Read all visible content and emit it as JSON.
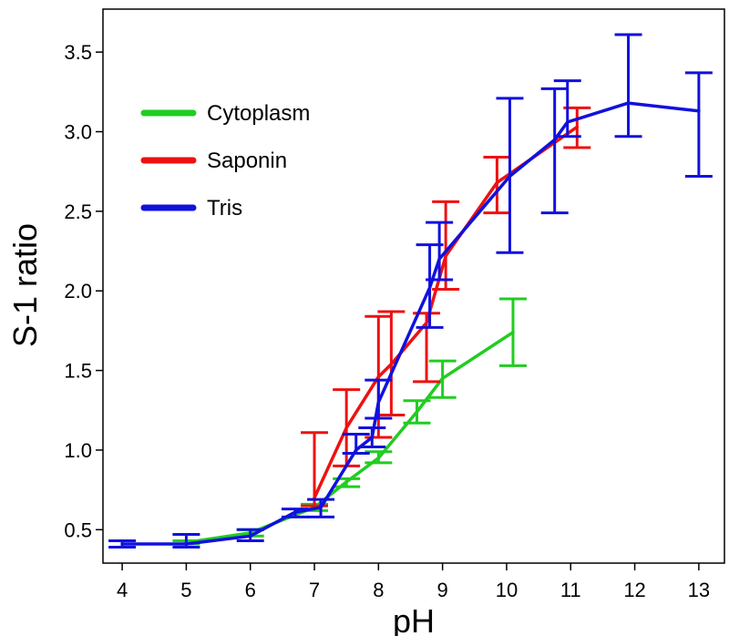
{
  "chart_data": {
    "type": "line",
    "title": "",
    "xlabel": "pH",
    "ylabel": "S-1 ratio",
    "xlim": [
      3.7,
      13.4
    ],
    "ylim": [
      0.29,
      3.77
    ],
    "x_ticks": [
      4,
      5,
      6,
      7,
      8,
      9,
      10,
      11,
      12,
      13
    ],
    "y_ticks": [
      0.5,
      1.0,
      1.5,
      2.0,
      2.5,
      3.0,
      3.5
    ],
    "legend_position": "top-left",
    "series": [
      {
        "name": "Cytoplasm",
        "color": "#22cc22",
        "points": [
          {
            "x": 5.0,
            "y": 0.42,
            "lo": 0.41,
            "hi": 0.43
          },
          {
            "x": 6.0,
            "y": 0.48,
            "lo": 0.46,
            "hi": 0.5
          },
          {
            "x": 7.0,
            "y": 0.64,
            "lo": 0.62,
            "hi": 0.66
          },
          {
            "x": 7.5,
            "y": 0.8,
            "lo": 0.77,
            "hi": 0.82
          },
          {
            "x": 8.0,
            "y": 0.95,
            "lo": 0.92,
            "hi": 0.99
          },
          {
            "x": 8.6,
            "y": 1.24,
            "lo": 1.17,
            "hi": 1.31
          },
          {
            "x": 9.0,
            "y": 1.45,
            "lo": 1.33,
            "hi": 1.56
          },
          {
            "x": 10.1,
            "y": 1.74,
            "lo": 1.53,
            "hi": 1.95
          }
        ]
      },
      {
        "name": "Saponin",
        "color": "#ee1111",
        "points": [
          {
            "x": 7.0,
            "y": 0.7,
            "lo": 0.65,
            "hi": 1.11
          },
          {
            "x": 7.5,
            "y": 1.14,
            "lo": 0.9,
            "hi": 1.38
          },
          {
            "x": 8.0,
            "y": 1.46,
            "lo": 1.08,
            "hi": 1.84
          },
          {
            "x": 8.2,
            "y": 1.54,
            "lo": 1.22,
            "hi": 1.87
          },
          {
            "x": 8.75,
            "y": 1.8,
            "lo": 1.43,
            "hi": 1.86
          },
          {
            "x": 9.05,
            "y": 2.22,
            "lo": 2.01,
            "hi": 2.56
          },
          {
            "x": 9.85,
            "y": 2.68,
            "lo": 2.49,
            "hi": 2.84
          },
          {
            "x": 11.1,
            "y": 3.03,
            "lo": 2.9,
            "hi": 3.15
          }
        ]
      },
      {
        "name": "Tris",
        "color": "#1111dd",
        "points": [
          {
            "x": 4.0,
            "y": 0.41,
            "lo": 0.39,
            "hi": 0.43
          },
          {
            "x": 5.0,
            "y": 0.41,
            "lo": 0.39,
            "hi": 0.47
          },
          {
            "x": 6.0,
            "y": 0.46,
            "lo": 0.43,
            "hi": 0.5
          },
          {
            "x": 6.7,
            "y": 0.61,
            "lo": 0.58,
            "hi": 0.63
          },
          {
            "x": 7.1,
            "y": 0.64,
            "lo": 0.58,
            "hi": 0.69
          },
          {
            "x": 7.65,
            "y": 1.0,
            "lo": 0.98,
            "hi": 1.1
          },
          {
            "x": 7.9,
            "y": 1.08,
            "lo": 1.02,
            "hi": 1.14
          },
          {
            "x": 8.0,
            "y": 1.3,
            "lo": 1.2,
            "hi": 1.44
          },
          {
            "x": 8.8,
            "y": 2.02,
            "lo": 1.77,
            "hi": 2.29
          },
          {
            "x": 8.95,
            "y": 2.2,
            "lo": 2.07,
            "hi": 2.43
          },
          {
            "x": 10.05,
            "y": 2.72,
            "lo": 2.24,
            "hi": 3.21
          },
          {
            "x": 10.75,
            "y": 2.95,
            "lo": 2.49,
            "hi": 3.27
          },
          {
            "x": 10.95,
            "y": 3.06,
            "lo": 2.97,
            "hi": 3.32
          },
          {
            "x": 11.9,
            "y": 3.18,
            "lo": 2.97,
            "hi": 3.61
          },
          {
            "x": 13.0,
            "y": 3.13,
            "lo": 2.72,
            "hi": 3.37
          }
        ]
      }
    ]
  }
}
